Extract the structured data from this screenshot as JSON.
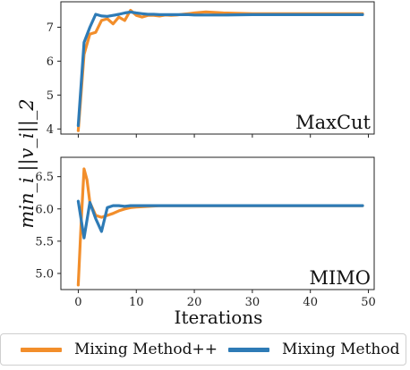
{
  "colors": {
    "mixing_pp": "#f28e2b",
    "mixing": "#2e7bb6",
    "axis": "#222222"
  },
  "ylabel": "min_i ||v_i||_2",
  "xlabel": "Iterations",
  "legend": [
    {
      "label": "Mixing Method++",
      "color": "#f28e2b"
    },
    {
      "label": "Mixing Method",
      "color": "#2e7bb6"
    }
  ],
  "chart_data": [
    {
      "type": "line",
      "title": "MaxCut",
      "xlim": [
        -3,
        51
      ],
      "ylim": [
        3.85,
        7.75
      ],
      "xticks": [
        0,
        10,
        20,
        30,
        40,
        50
      ],
      "yticks": [
        4,
        5,
        6,
        7
      ],
      "series": [
        {
          "name": "Mixing Method++",
          "color": "#f28e2b",
          "x": [
            0,
            1,
            2,
            3,
            4,
            5,
            6,
            7,
            8,
            9,
            10,
            11,
            12,
            13,
            14,
            15,
            16,
            17,
            18,
            19,
            20,
            22,
            25,
            30,
            35,
            40,
            45,
            49
          ],
          "y": [
            3.95,
            6.2,
            6.8,
            6.85,
            7.2,
            7.25,
            7.1,
            7.3,
            7.2,
            7.5,
            7.35,
            7.3,
            7.35,
            7.35,
            7.33,
            7.36,
            7.35,
            7.36,
            7.38,
            7.4,
            7.42,
            7.45,
            7.42,
            7.4,
            7.4,
            7.4,
            7.4,
            7.4
          ]
        },
        {
          "name": "Mixing Method",
          "color": "#2e7bb6",
          "x": [
            0,
            1,
            2,
            3,
            4,
            5,
            6,
            7,
            8,
            9,
            10,
            11,
            12,
            13,
            14,
            15,
            16,
            17,
            18,
            19,
            20,
            22,
            25,
            30,
            35,
            40,
            45,
            49
          ],
          "y": [
            4.1,
            6.55,
            7.0,
            7.38,
            7.33,
            7.32,
            7.35,
            7.38,
            7.42,
            7.45,
            7.42,
            7.4,
            7.38,
            7.38,
            7.37,
            7.37,
            7.37,
            7.37,
            7.37,
            7.37,
            7.36,
            7.36,
            7.36,
            7.37,
            7.37,
            7.37,
            7.37,
            7.37
          ]
        }
      ]
    },
    {
      "type": "line",
      "title": "MIMO",
      "xlim": [
        -3,
        51
      ],
      "ylim": [
        4.75,
        6.8
      ],
      "xticks": [
        0,
        10,
        20,
        30,
        40,
        50
      ],
      "xticklabels": [
        "0",
        "10",
        "20",
        "30",
        "40",
        "50"
      ],
      "yticks": [
        5.0,
        5.5,
        6.0,
        6.5
      ],
      "yticklabels": [
        "5.0",
        "5.5",
        "6.0",
        "6.5"
      ],
      "series": [
        {
          "name": "Mixing Method++",
          "color": "#f28e2b",
          "x": [
            0,
            0.5,
            1,
            1.5,
            2,
            3,
            4,
            5,
            6,
            7,
            8,
            9,
            10,
            12,
            14,
            16,
            20,
            30,
            40,
            49
          ],
          "y": [
            4.82,
            5.8,
            6.62,
            6.45,
            6.1,
            5.9,
            5.87,
            5.9,
            5.93,
            5.97,
            6.0,
            6.02,
            6.03,
            6.04,
            6.05,
            6.05,
            6.05,
            6.05,
            6.05,
            6.05
          ]
        },
        {
          "name": "Mixing Method",
          "color": "#2e7bb6",
          "x": [
            0,
            1,
            2,
            3,
            4,
            5,
            6,
            7,
            8,
            9,
            10,
            12,
            14,
            16,
            20,
            30,
            40,
            49
          ],
          "y": [
            6.12,
            5.55,
            6.1,
            5.85,
            5.65,
            6.02,
            6.05,
            6.05,
            6.04,
            6.05,
            6.05,
            6.05,
            6.05,
            6.05,
            6.05,
            6.05,
            6.05,
            6.05
          ]
        }
      ]
    }
  ]
}
